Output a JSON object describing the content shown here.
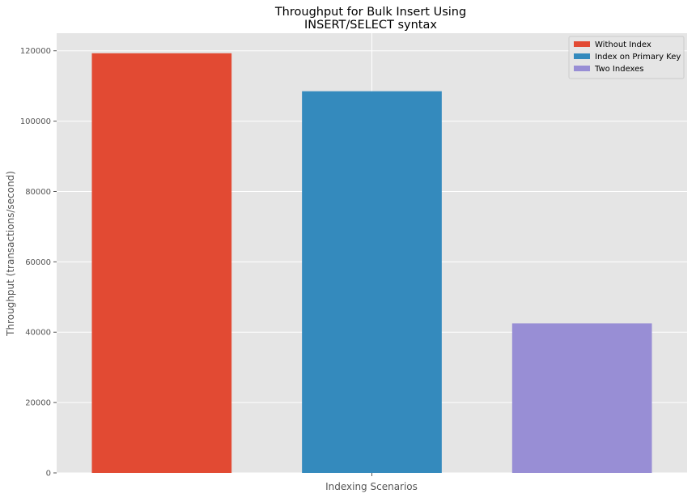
{
  "chart_data": {
    "type": "bar",
    "title_lines": [
      "Throughput for Bulk Insert Using",
      "INSERT/SELECT syntax"
    ],
    "xlabel": "Indexing Scenarios",
    "ylabel": "Throughput (transactions/second)",
    "ylim": [
      0,
      125000
    ],
    "yticks": [
      0,
      20000,
      40000,
      60000,
      80000,
      100000,
      120000
    ],
    "ytick_labels": [
      "0",
      "20000",
      "40000",
      "60000",
      "80000",
      "100000",
      "120000"
    ],
    "grid": true,
    "legend_position": "top-right",
    "series": [
      {
        "name": "Without Index",
        "value": 119300,
        "color": "#E24A33"
      },
      {
        "name": "Index on Primary Key",
        "value": 108500,
        "color": "#348ABD"
      },
      {
        "name": "Two Indexes",
        "value": 42500,
        "color": "#988ED5"
      }
    ]
  },
  "colors": {
    "plot_background": "#E5E5E5",
    "grid": "#FFFFFF"
  }
}
